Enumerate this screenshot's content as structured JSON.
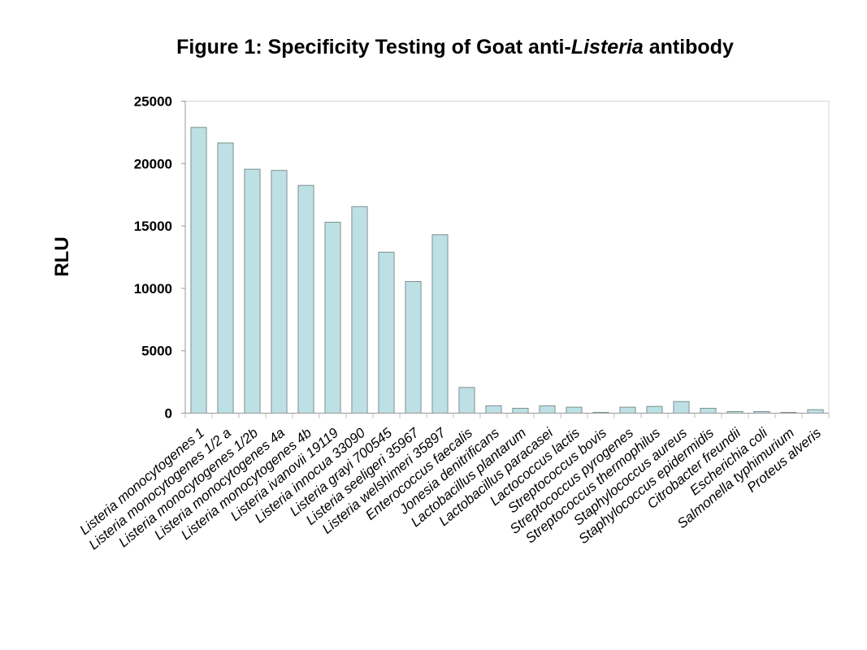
{
  "chart_data": {
    "type": "bar",
    "title_prefix": "Figure 1:  Specificity Testing of Goat anti-",
    "title_italic": "Listeria",
    "title_suffix": " antibody",
    "xlabel": "",
    "ylabel": "RLU",
    "ylim": [
      0,
      25000
    ],
    "yticks": [
      0,
      5000,
      10000,
      15000,
      20000,
      25000
    ],
    "grid": false,
    "bar_color": "#bce0e4",
    "bar_edge_color": "#7f8f90",
    "categories": [
      "Listeria monocytogenes 1",
      "Listeria monocytogenes 1/2 a",
      "Listeria monocytogenes 1/2b",
      "Listeria monocytogenes 4a",
      "Listeria monocytogenes 4b",
      "Listeria ivanovii 19119",
      "Listeria innocua 33090",
      "Listeria grayi 700545",
      "Listeria seeligeri 35967",
      "Listeria welshimeri 35897",
      "Enterococcus faecalis",
      "Jonesia denitrificans",
      "Lactobacillus plantarum",
      "Lactobacillus paracasei",
      "Lactococcus lactis",
      "Streptococcus bovis",
      "Streptococcus pyrogenes",
      "Streptococcus thermophilus",
      "Staphylococcus aureus",
      "Staphylococcus epidermidis",
      "Citrobacter freundii",
      "Escherichia coli",
      "Salmonella typhimurium",
      "Proteus alveris"
    ],
    "values": [
      22900,
      21650,
      19550,
      19450,
      18250,
      15300,
      16550,
      12900,
      10550,
      14300,
      2060,
      590,
      390,
      590,
      480,
      60,
      480,
      540,
      930,
      390,
      130,
      130,
      60,
      280
    ]
  }
}
